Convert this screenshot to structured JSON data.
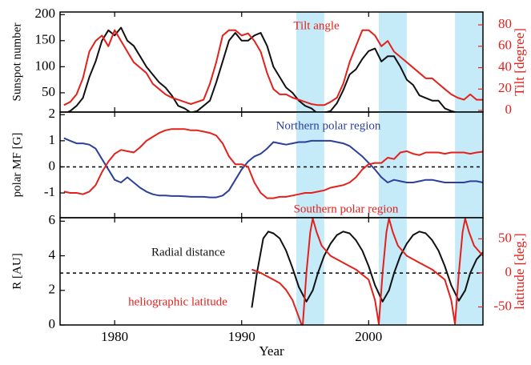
{
  "chart_data": [
    {
      "type": "line",
      "ylabel": "Sunspot number",
      "y2label": "Tilt [degree]",
      "xlim": [
        1975.7,
        2009.0
      ],
      "ylim": [
        13,
        205
      ],
      "yticks": [
        50,
        100,
        150,
        200
      ],
      "y2lim": [
        -1.5,
        92
      ],
      "y2ticks": [
        0,
        20,
        40,
        60,
        80
      ],
      "shaded_x": [
        [
          1994.3,
          1996.5
        ],
        [
          2000.8,
          2003.0
        ],
        [
          2006.8,
          2009.0
        ]
      ],
      "shade_color": "#c6ebf8",
      "x": [
        1976,
        1976.5,
        1977,
        1977.5,
        1978,
        1978.5,
        1979,
        1979.5,
        1980,
        1980.5,
        1981,
        1981.5,
        1982,
        1982.5,
        1983,
        1983.5,
        1984,
        1984.5,
        1985,
        1985.5,
        1986,
        1986.5,
        1987,
        1987.5,
        1988,
        1988.5,
        1989,
        1989.5,
        1990,
        1990.5,
        1991,
        1991.5,
        1992,
        1992.5,
        1993,
        1993.5,
        1994,
        1994.5,
        1995,
        1995.5,
        1996,
        1996.5,
        1997,
        1997.5,
        1998,
        1998.5,
        1999,
        1999.5,
        2000,
        2000.5,
        2001,
        2001.5,
        2002,
        2002.5,
        2003,
        2003.5,
        2004,
        2004.5,
        2005,
        2005.5,
        2006,
        2006.5,
        2007,
        2007.5,
        2008,
        2008.5,
        2009
      ],
      "series": [
        {
          "color": "#111111",
          "values": [
            10,
            15,
            25,
            40,
            80,
            110,
            150,
            170,
            160,
            175,
            150,
            140,
            120,
            100,
            85,
            70,
            60,
            45,
            25,
            20,
            12,
            15,
            25,
            35,
            70,
            110,
            150,
            165,
            150,
            150,
            160,
            165,
            140,
            100,
            80,
            60,
            50,
            35,
            25,
            20,
            10,
            12,
            15,
            30,
            55,
            85,
            95,
            115,
            130,
            135,
            110,
            120,
            120,
            100,
            75,
            65,
            45,
            40,
            35,
            35,
            20,
            15,
            12,
            8,
            5,
            3,
            2
          ]
        },
        {
          "name": "Tilt angle",
          "color": "#e3211c",
          "axis": "y2",
          "values": [
            5,
            8,
            15,
            30,
            55,
            65,
            70,
            60,
            75,
            65,
            55,
            45,
            40,
            35,
            25,
            20,
            15,
            12,
            10,
            8,
            6,
            8,
            10,
            25,
            45,
            70,
            75,
            75,
            70,
            72,
            65,
            55,
            35,
            20,
            15,
            15,
            12,
            10,
            8,
            6,
            5,
            5,
            8,
            12,
            25,
            45,
            60,
            75,
            75,
            70,
            60,
            65,
            55,
            50,
            45,
            40,
            35,
            30,
            30,
            25,
            20,
            15,
            12,
            10,
            15,
            10,
            10
          ]
        }
      ]
    },
    {
      "type": "line",
      "ylabel": "polar MF [G]",
      "xlim": [
        1975.7,
        2009.0
      ],
      "ylim": [
        -1.95,
        2.1
      ],
      "yticks": [
        -1,
        0,
        1,
        2
      ],
      "hline": 0,
      "shaded_x": [
        [
          1994.3,
          1996.5
        ],
        [
          2000.8,
          2003.0
        ],
        [
          2006.8,
          2009.0
        ]
      ],
      "shade_color": "#c6ebf8",
      "x": [
        1976,
        1976.5,
        1977,
        1977.5,
        1978,
        1978.5,
        1979,
        1979.5,
        1980,
        1980.5,
        1981,
        1981.5,
        1982,
        1982.5,
        1983,
        1983.5,
        1984,
        1984.5,
        1985,
        1985.5,
        1986,
        1986.5,
        1987,
        1987.5,
        1988,
        1988.5,
        1989,
        1989.5,
        1990,
        1990.5,
        1991,
        1991.5,
        1992,
        1992.5,
        1993,
        1993.5,
        1994,
        1994.5,
        1995,
        1995.5,
        1996,
        1996.5,
        1997,
        1997.5,
        1998,
        1998.5,
        1999,
        1999.5,
        2000,
        2000.5,
        2001,
        2001.5,
        2002,
        2002.5,
        2003,
        2003.5,
        2004,
        2004.5,
        2005,
        2005.5,
        2006,
        2006.5,
        2007,
        2007.5,
        2008,
        2008.5,
        2009
      ],
      "series": [
        {
          "name": "Northern polar region",
          "color": "#2b3f9b",
          "values": [
            1.1,
            1.0,
            0.9,
            0.9,
            0.85,
            0.7,
            0.3,
            -0.1,
            -0.5,
            -0.6,
            -0.4,
            -0.6,
            -0.8,
            -0.95,
            -1.05,
            -1.1,
            -1.1,
            -1.12,
            -1.12,
            -1.13,
            -1.15,
            -1.15,
            -1.15,
            -1.17,
            -1.17,
            -1.1,
            -0.9,
            -0.5,
            -0.1,
            0.2,
            0.4,
            0.5,
            0.7,
            0.95,
            0.9,
            0.85,
            0.9,
            0.95,
            0.95,
            1.0,
            1.0,
            1.0,
            1.0,
            0.95,
            0.9,
            0.8,
            0.6,
            0.4,
            0.15,
            -0.1,
            -0.4,
            -0.6,
            -0.5,
            -0.55,
            -0.6,
            -0.6,
            -0.55,
            -0.5,
            -0.5,
            -0.55,
            -0.6,
            -0.6,
            -0.6,
            -0.6,
            -0.55,
            -0.55,
            -0.6
          ]
        },
        {
          "name": "Southern polar region",
          "color": "#e3211c",
          "values": [
            -0.95,
            -1.0,
            -1.0,
            -1.05,
            -0.95,
            -0.7,
            -0.2,
            0.2,
            0.5,
            0.65,
            0.6,
            0.55,
            0.75,
            1.0,
            1.15,
            1.3,
            1.4,
            1.45,
            1.45,
            1.45,
            1.4,
            1.4,
            1.35,
            1.3,
            1.2,
            0.9,
            0.4,
            0.1,
            0.1,
            0.0,
            -0.6,
            -1.0,
            -1.2,
            -1.2,
            -1.15,
            -1.15,
            -1.1,
            -1.05,
            -1.0,
            -1.0,
            -0.95,
            -0.9,
            -0.8,
            -0.75,
            -0.7,
            -0.6,
            -0.4,
            -0.1,
            0.1,
            0.15,
            0.15,
            0.35,
            0.3,
            0.55,
            0.6,
            0.5,
            0.45,
            0.55,
            0.55,
            0.55,
            0.5,
            0.55,
            0.55,
            0.55,
            0.5,
            0.55,
            0.58
          ]
        }
      ]
    },
    {
      "type": "line",
      "ylabel": "R [AU]",
      "y2label": "latitude [deg.]",
      "xlabel": "Year",
      "xlim": [
        1975.7,
        2009.0
      ],
      "xticks": [
        1980,
        1990,
        2000
      ],
      "ylim": [
        0,
        6.2
      ],
      "yticks": [
        0,
        2,
        4,
        6
      ],
      "y2lim": [
        -76.5,
        81
      ],
      "y2ticks": [
        -50,
        0,
        50
      ],
      "hline": 3,
      "shaded_x": [
        [
          1994.3,
          1996.5
        ],
        [
          2000.8,
          2003.0
        ],
        [
          2006.8,
          2009.0
        ]
      ],
      "shade_color": "#c6ebf8",
      "series": [
        {
          "name": "Radial distance",
          "color": "#111111",
          "x": [
            1990.8,
            1991.2,
            1991.7,
            1992.1,
            1992.5,
            1993,
            1993.5,
            1994,
            1994.5,
            1995.1,
            1995.6,
            1996,
            1996.5,
            1997,
            1997.5,
            1998,
            1998.5,
            1999,
            1999.5,
            2000,
            2000.5,
            2001.1,
            2001.6,
            2002,
            2002.5,
            2003,
            2003.5,
            2004,
            2004.5,
            2005,
            2005.5,
            2006,
            2006.5,
            2007.1,
            2007.6,
            2008,
            2008.5,
            2009
          ],
          "values": [
            1.0,
            3.0,
            5.0,
            5.4,
            5.3,
            5.0,
            4.3,
            3.3,
            2.2,
            1.35,
            2.0,
            3.0,
            4.0,
            4.7,
            5.2,
            5.4,
            5.3,
            4.9,
            4.3,
            3.4,
            2.3,
            1.35,
            2.0,
            3.0,
            4.0,
            4.7,
            5.2,
            5.4,
            5.3,
            4.9,
            4.3,
            3.4,
            2.3,
            1.4,
            2.0,
            3.0,
            3.8,
            4.2
          ]
        },
        {
          "name": "heliographic latitude",
          "color": "#e3211c",
          "axis": "y2",
          "x": [
            1990.8,
            1991.5,
            1992,
            1992.5,
            1993,
            1993.5,
            1994,
            1994.5,
            1994.8,
            1995.1,
            1995.4,
            1995.6,
            1995.9,
            1996.3,
            1997,
            1998,
            1999,
            2000,
            2000.5,
            2000.8,
            2001.1,
            2001.4,
            2001.6,
            2001.9,
            2002.3,
            2003,
            2004,
            2005,
            2006,
            2006.5,
            2006.8,
            2007.1,
            2007.4,
            2007.6,
            2007.9,
            2008.3,
            2009
          ],
          "values": [
            5,
            0,
            -5,
            -10,
            -15,
            -25,
            -40,
            -65,
            -80,
            0,
            60,
            80,
            60,
            40,
            25,
            15,
            5,
            -10,
            -40,
            -75,
            0,
            60,
            80,
            60,
            40,
            25,
            15,
            5,
            -10,
            -40,
            -75,
            0,
            60,
            80,
            60,
            40,
            25
          ]
        }
      ]
    }
  ]
}
